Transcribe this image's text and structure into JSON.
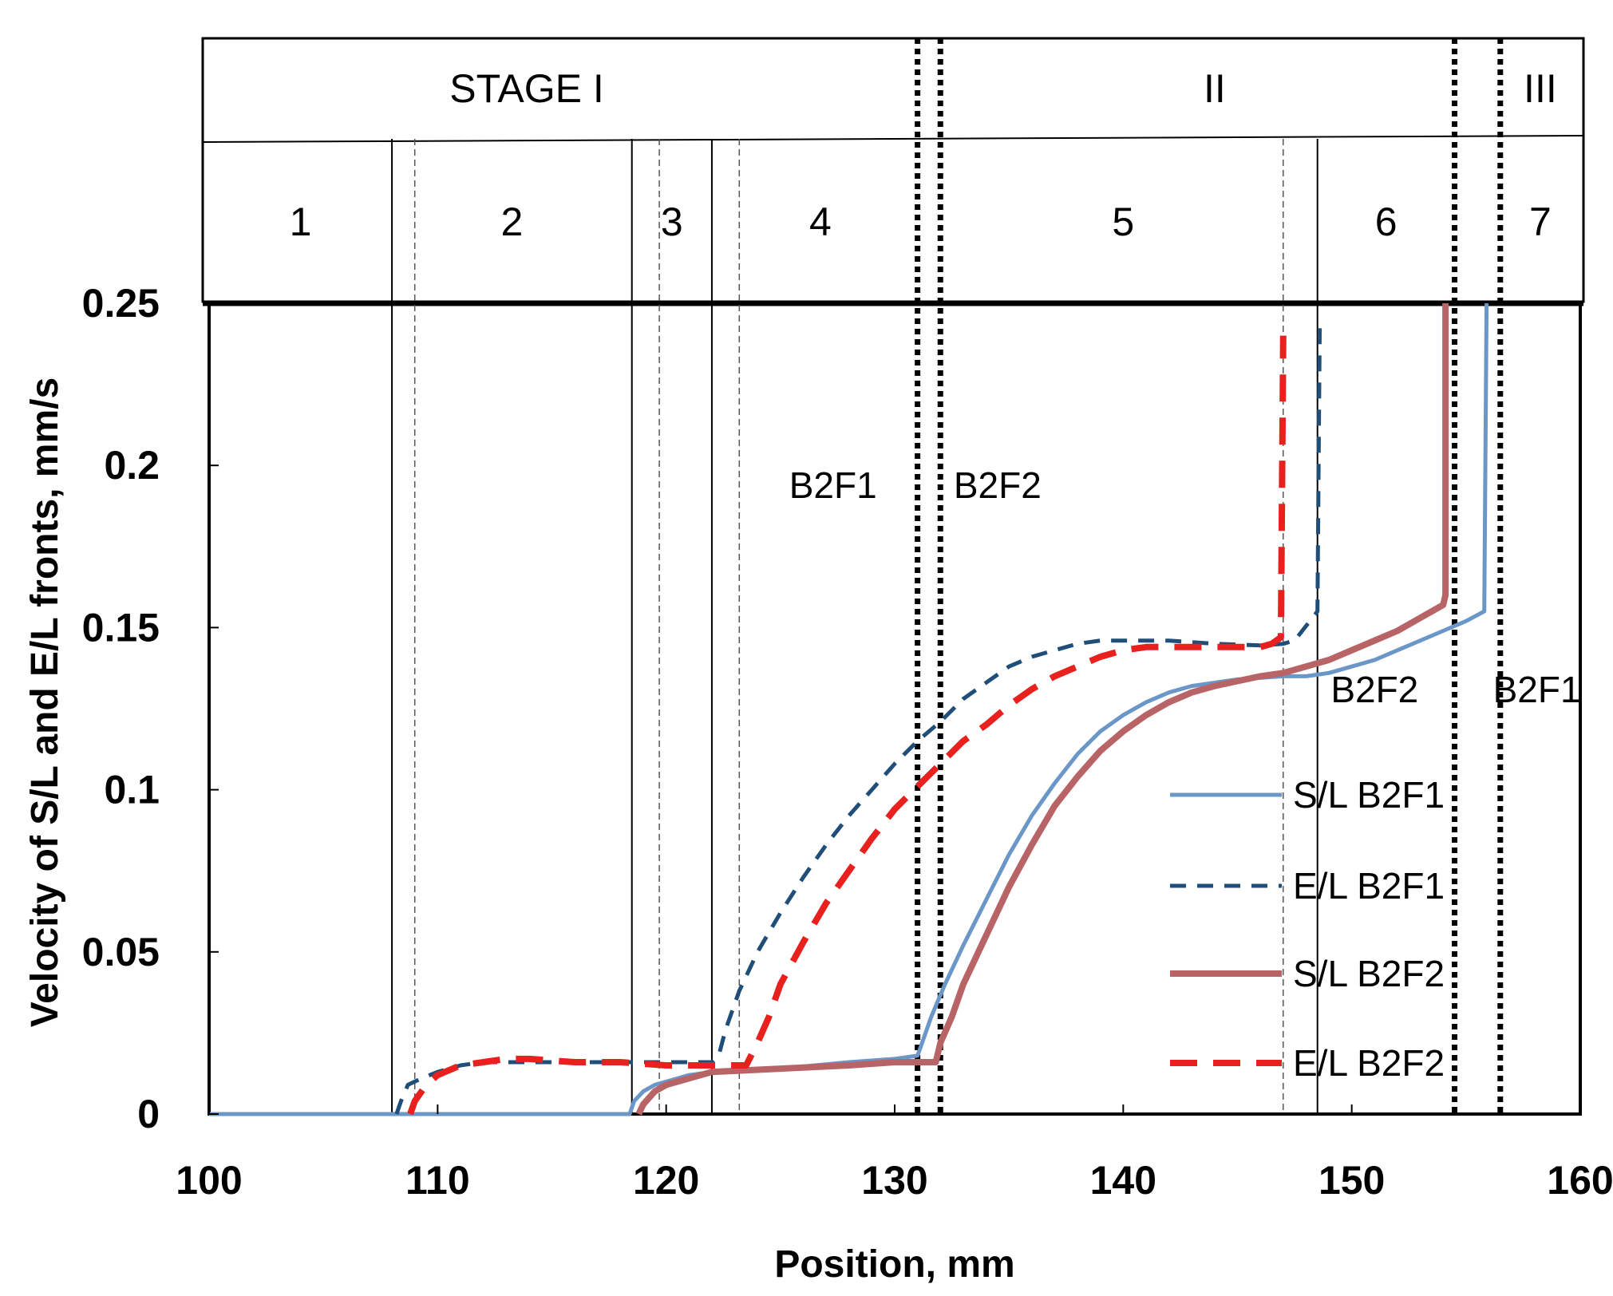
{
  "chart_data": {
    "type": "line",
    "xlabel": "Position, mm",
    "ylabel": "Velocity of S/L and E/L fronts, mm/s",
    "xlim": [
      100,
      160
    ],
    "ylim": [
      0,
      0.25
    ],
    "x_ticks": [
      100,
      110,
      120,
      130,
      140,
      150,
      160
    ],
    "y_ticks": [
      {
        "value": 0,
        "label": "0"
      },
      {
        "value": 0.05,
        "label": "0.05"
      },
      {
        "value": 0.1,
        "label": "0.1"
      },
      {
        "value": 0.15,
        "label": "0.15"
      },
      {
        "value": 0.2,
        "label": "0.2"
      },
      {
        "value": 0.25,
        "label": "0.25"
      }
    ],
    "stages": [
      {
        "label": "STAGE I",
        "x_start": 100,
        "x_end": 131.5
      },
      {
        "label": "II",
        "x_start": 131.5,
        "x_end": 156.5
      },
      {
        "label": "III",
        "x_start": 156.5,
        "x_end": 160
      }
    ],
    "zones": [
      {
        "label": "1",
        "x_start": 100,
        "x_end": 108
      },
      {
        "label": "2",
        "x_start": 108,
        "x_end": 118.5
      },
      {
        "label": "3",
        "x_start": 118.5,
        "x_end": 122
      },
      {
        "label": "4",
        "x_start": 122,
        "x_end": 131.5
      },
      {
        "label": "5",
        "x_start": 131.5,
        "x_end": 148.5
      },
      {
        "label": "6",
        "x_start": 148.5,
        "x_end": 154.5
      },
      {
        "label": "7",
        "x_start": 156.5,
        "x_end": 160
      }
    ],
    "boundaries": {
      "solid_lines": [
        108,
        118.5,
        122,
        148.5
      ],
      "thin_dashed_lines": [
        109,
        119.7,
        123.2,
        147
      ],
      "dotted_lines": [
        131,
        132,
        154.5,
        156.5
      ]
    },
    "annotations": [
      {
        "text": "B2F1",
        "x": 127.3,
        "y": 0.19
      },
      {
        "text": "B2F2",
        "x": 134.5,
        "y": 0.19
      },
      {
        "text": "B2F2",
        "x": 151,
        "y": 0.127
      },
      {
        "text": "B2F1",
        "x": 158.1,
        "y": 0.127
      }
    ],
    "series": [
      {
        "name": "S/L B2F1",
        "color": "#6a96c8",
        "style": "solid",
        "points": [
          [
            100,
            0
          ],
          [
            118.4,
            0
          ],
          [
            118.6,
            0.004
          ],
          [
            119,
            0.007
          ],
          [
            119.5,
            0.009
          ],
          [
            120,
            0.01
          ],
          [
            121,
            0.012
          ],
          [
            122,
            0.013
          ],
          [
            125,
            0.014
          ],
          [
            128,
            0.016
          ],
          [
            130,
            0.017
          ],
          [
            131,
            0.018
          ],
          [
            131.2,
            0.022
          ],
          [
            131.6,
            0.03
          ],
          [
            132.2,
            0.04
          ],
          [
            133,
            0.052
          ],
          [
            134,
            0.066
          ],
          [
            135,
            0.08
          ],
          [
            136,
            0.092
          ],
          [
            137,
            0.102
          ],
          [
            138,
            0.111
          ],
          [
            139,
            0.118
          ],
          [
            140,
            0.123
          ],
          [
            141,
            0.127
          ],
          [
            142,
            0.13
          ],
          [
            143,
            0.132
          ],
          [
            144,
            0.133
          ],
          [
            145,
            0.134
          ],
          [
            146,
            0.1345
          ],
          [
            147,
            0.135
          ],
          [
            148,
            0.135
          ],
          [
            149,
            0.136
          ],
          [
            150,
            0.138
          ],
          [
            151,
            0.14
          ],
          [
            152,
            0.143
          ],
          [
            153,
            0.146
          ],
          [
            154,
            0.149
          ],
          [
            155,
            0.152
          ],
          [
            155.8,
            0.155
          ],
          [
            155.9,
            0.25
          ]
        ]
      },
      {
        "name": "E/L B2F1",
        "color": "#1f4e79",
        "style": "dashed",
        "points": [
          [
            108.2,
            0
          ],
          [
            108.4,
            0.004
          ],
          [
            108.7,
            0.009
          ],
          [
            109.3,
            0.011
          ],
          [
            110,
            0.013
          ],
          [
            111,
            0.015
          ],
          [
            112,
            0.016
          ],
          [
            115,
            0.016
          ],
          [
            118,
            0.016
          ],
          [
            120,
            0.016
          ],
          [
            122,
            0.016
          ],
          [
            122.3,
            0.018
          ],
          [
            122.6,
            0.026
          ],
          [
            123.2,
            0.038
          ],
          [
            124,
            0.05
          ],
          [
            125,
            0.062
          ],
          [
            126,
            0.073
          ],
          [
            127,
            0.083
          ],
          [
            128,
            0.092
          ],
          [
            129,
            0.1
          ],
          [
            130,
            0.108
          ],
          [
            131,
            0.115
          ],
          [
            132,
            0.121
          ],
          [
            133,
            0.128
          ],
          [
            134,
            0.133
          ],
          [
            135,
            0.138
          ],
          [
            136,
            0.141
          ],
          [
            137,
            0.143
          ],
          [
            138,
            0.145
          ],
          [
            139,
            0.146
          ],
          [
            140,
            0.146
          ],
          [
            142,
            0.146
          ],
          [
            144,
            0.145
          ],
          [
            146,
            0.1445
          ],
          [
            147,
            0.145
          ],
          [
            147.5,
            0.146
          ],
          [
            148.5,
            0.155
          ],
          [
            148.6,
            0.245
          ]
        ]
      },
      {
        "name": "S/L B2F2",
        "color": "#b86466",
        "style": "solid",
        "points": [
          [
            118.8,
            0
          ],
          [
            119,
            0.003
          ],
          [
            119.5,
            0.007
          ],
          [
            120,
            0.009
          ],
          [
            121,
            0.011
          ],
          [
            122,
            0.013
          ],
          [
            125,
            0.014
          ],
          [
            128,
            0.015
          ],
          [
            130,
            0.016
          ],
          [
            131.5,
            0.016
          ],
          [
            131.8,
            0.016
          ],
          [
            132,
            0.022
          ],
          [
            132.5,
            0.03
          ],
          [
            133,
            0.04
          ],
          [
            134,
            0.055
          ],
          [
            135,
            0.07
          ],
          [
            136,
            0.083
          ],
          [
            137,
            0.095
          ],
          [
            138,
            0.104
          ],
          [
            139,
            0.112
          ],
          [
            140,
            0.118
          ],
          [
            141,
            0.123
          ],
          [
            142,
            0.127
          ],
          [
            143,
            0.13
          ],
          [
            144,
            0.132
          ],
          [
            145,
            0.1335
          ],
          [
            146,
            0.135
          ],
          [
            147,
            0.136
          ],
          [
            148,
            0.138
          ],
          [
            149,
            0.14
          ],
          [
            150,
            0.143
          ],
          [
            151,
            0.146
          ],
          [
            152,
            0.149
          ],
          [
            153,
            0.153
          ],
          [
            153.5,
            0.155
          ],
          [
            154,
            0.157
          ],
          [
            154.1,
            0.16
          ],
          [
            154.1,
            0.25
          ]
        ]
      },
      {
        "name": "E/L B2F2",
        "color": "#e8201e",
        "style": "dashed",
        "points": [
          [
            108.8,
            0
          ],
          [
            109,
            0.004
          ],
          [
            109.5,
            0.009
          ],
          [
            110,
            0.012
          ],
          [
            111,
            0.015
          ],
          [
            112,
            0.016
          ],
          [
            113,
            0.017
          ],
          [
            114,
            0.017
          ],
          [
            116,
            0.016
          ],
          [
            118,
            0.016
          ],
          [
            120,
            0.015
          ],
          [
            122,
            0.015
          ],
          [
            123.5,
            0.015
          ],
          [
            124,
            0.022
          ],
          [
            124.5,
            0.03
          ],
          [
            125,
            0.04
          ],
          [
            126,
            0.053
          ],
          [
            127,
            0.065
          ],
          [
            128,
            0.075
          ],
          [
            129,
            0.085
          ],
          [
            130,
            0.094
          ],
          [
            131,
            0.101
          ],
          [
            132,
            0.108
          ],
          [
            133,
            0.115
          ],
          [
            134,
            0.12
          ],
          [
            135,
            0.126
          ],
          [
            136,
            0.131
          ],
          [
            137,
            0.135
          ],
          [
            138,
            0.138
          ],
          [
            139,
            0.141
          ],
          [
            140,
            0.143
          ],
          [
            141,
            0.144
          ],
          [
            142,
            0.144
          ],
          [
            144,
            0.144
          ],
          [
            146,
            0.144
          ],
          [
            146.5,
            0.145
          ],
          [
            146.9,
            0.147
          ],
          [
            147,
            0.24
          ]
        ]
      }
    ],
    "legend": {
      "position": "lower-right",
      "entries": [
        "S/L B2F1",
        "E/L B2F1",
        "S/L B2F2",
        "E/L B2F2"
      ]
    }
  }
}
